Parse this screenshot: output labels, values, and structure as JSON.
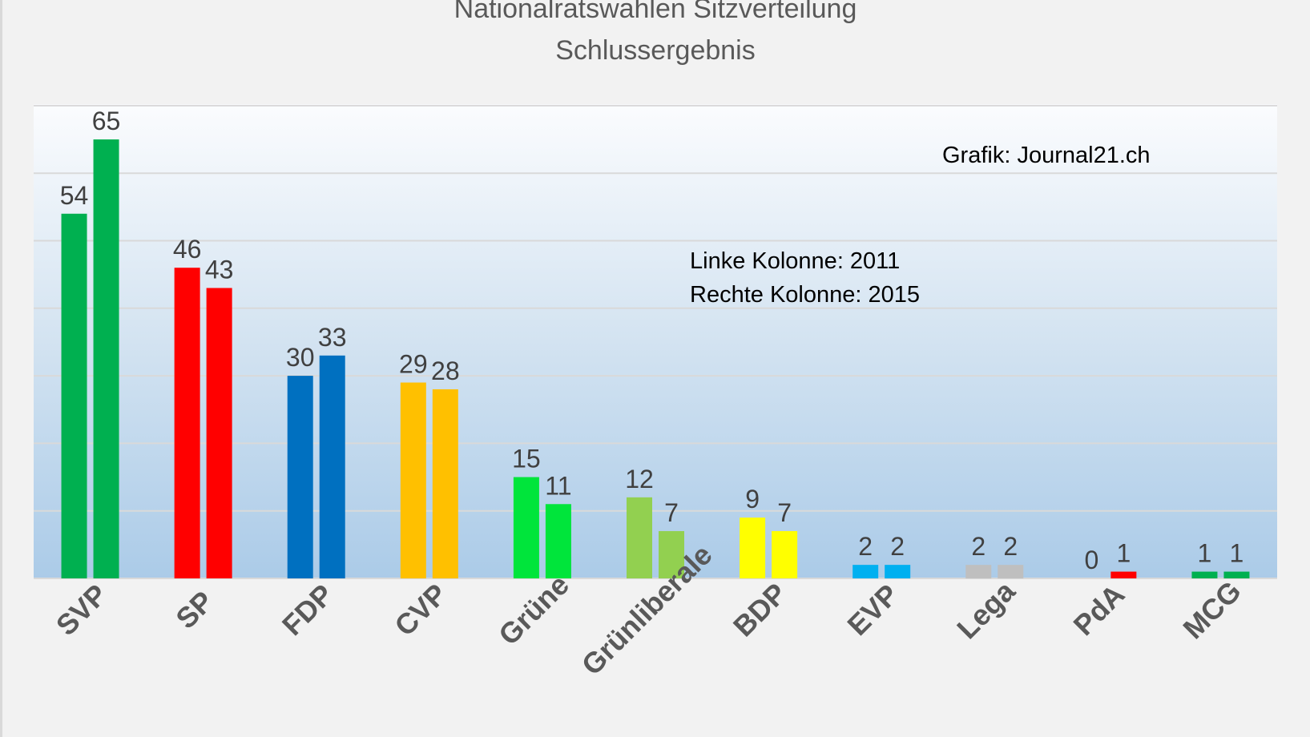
{
  "chart_data": {
    "type": "bar",
    "title": "Nationalratswahlen Sitzverteilung",
    "subtitle": "Schlussergebnis",
    "categories": [
      "SVP",
      "SP",
      "FDP",
      "CVP",
      "Grüne",
      "Grünliberale",
      "BDP",
      "EVP",
      "Lega",
      "PdA",
      "MCG"
    ],
    "series": [
      {
        "name": "2011",
        "values": [
          54,
          46,
          30,
          29,
          15,
          12,
          9,
          2,
          2,
          0,
          1
        ]
      },
      {
        "name": "2015",
        "values": [
          65,
          43,
          33,
          28,
          11,
          7,
          7,
          2,
          2,
          1,
          1
        ]
      }
    ],
    "colors": [
      "#00b050",
      "#ff0000",
      "#0070c0",
      "#ffc000",
      "#00e53b",
      "#92d050",
      "#ffff00",
      "#00b0f0",
      "#bfbfbf",
      "#ff0000",
      "#00b050"
    ],
    "ylim": [
      0,
      70
    ],
    "grid_step": 10,
    "annotations": {
      "source": "Grafik: Journal21.ch",
      "legend_left": "Linke Kolonne: 2011",
      "legend_right": "Rechte Kolonne: 2015"
    }
  }
}
